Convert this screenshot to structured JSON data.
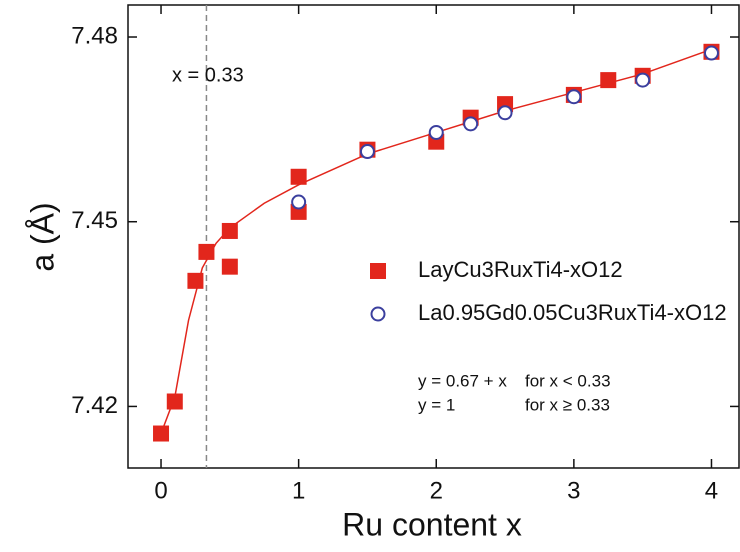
{
  "chart_data": {
    "type": "scatter",
    "xlabel": "Ru content x",
    "ylabel": "a (Å)",
    "xlim": [
      -0.24,
      4.2
    ],
    "ylim": [
      7.41,
      7.4852
    ],
    "xticks": [
      0,
      1,
      2,
      3,
      4
    ],
    "yticks": [
      7.42,
      7.45,
      7.48
    ],
    "vline": 0.33,
    "vline_label": "x = 0.33",
    "formula": [
      [
        "y = 0.67 + x",
        "for x < 0.33"
      ],
      [
        "y = 1",
        "for x ≥ 0.33"
      ]
    ],
    "series": [
      {
        "name": "LayCu3RuxTi4-xO12",
        "marker": "square",
        "color": "#e2261c",
        "x": [
          0,
          0.1,
          0.25,
          0.33,
          0.5,
          0.5,
          1,
          1,
          1.5,
          2,
          2.25,
          2.5,
          3,
          3.25,
          3.5,
          4
        ],
        "values": [
          7.4156,
          7.4208,
          7.4404,
          7.4451,
          7.4485,
          7.4427,
          7.4573,
          7.4516,
          7.4617,
          7.463,
          7.4669,
          7.4691,
          7.4706,
          7.473,
          7.4737,
          7.4776
        ]
      },
      {
        "name": "La0.95Gd0.05Cu3RuxTi4-xO12",
        "marker": "circle",
        "color": "#3b3f9e",
        "x": [
          1,
          1.5,
          2,
          2.25,
          2.5,
          3,
          3.5,
          4
        ],
        "values": [
          7.4532,
          7.4614,
          7.4645,
          7.4659,
          7.4677,
          7.4703,
          7.473,
          7.4774
        ]
      },
      {
        "marker": "line",
        "color": "#e2261c",
        "x": [
          0,
          0.1,
          0.2,
          0.3,
          0.4,
          0.5,
          0.75,
          1,
          1.5,
          2,
          2.5,
          3,
          3.5,
          4
        ],
        "values": [
          7.4156,
          7.4215,
          7.434,
          7.4425,
          7.4465,
          7.449,
          7.453,
          7.456,
          7.461,
          7.4645,
          7.468,
          7.471,
          7.474,
          7.478
        ]
      }
    ]
  }
}
